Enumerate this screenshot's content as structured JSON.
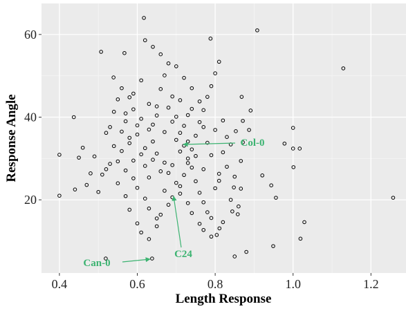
{
  "chart_data": {
    "type": "scatter",
    "x_label": "Length Response",
    "y_label": "Response Angle",
    "xlim": [
      0.354,
      1.29
    ],
    "ylim": [
      2.3,
      67.5
    ],
    "xticks": [
      0.4,
      0.6,
      0.8,
      {
        "value": 1,
        "label": "1.0"
      },
      1.2
    ],
    "yticks": [
      20,
      40,
      60
    ],
    "grid": true,
    "color": "#000000",
    "annotation_color": "#3cb371",
    "annotations": [
      "Col-0",
      "C24",
      "Can-0"
    ],
    "series": [
      {
        "name": "points",
        "color": "#000000",
        "x": [
          0.617,
          0.908,
          1.129,
          1.257,
          0.4,
          0.4,
          0.437,
          0.507,
          0.567,
          0.539,
          0.519,
          0.638,
          0.85,
          0.88,
          0.949,
          1.019,
          1.029,
          1.001,
          1.0,
          0.978,
          1.0,
          1.017,
          0.944,
          0.956,
          0.921,
          0.866,
          0.853,
          0.871,
          0.887,
          0.868,
          0.891,
          0.871,
          0.848,
          0.866,
          0.844,
          0.858,
          0.804,
          0.811,
          0.788,
          0.45,
          0.46,
          0.47,
          0.44,
          0.48,
          0.5,
          0.52,
          0.53,
          0.55,
          0.56,
          0.57,
          0.58,
          0.59,
          0.6,
          0.61,
          0.62,
          0.63,
          0.64,
          0.65,
          0.66,
          0.67,
          0.68,
          0.69,
          0.7,
          0.71,
          0.72,
          0.73,
          0.74,
          0.75,
          0.76,
          0.77,
          0.78,
          0.79,
          0.8,
          0.81,
          0.82,
          0.83,
          0.55,
          0.57,
          0.58,
          0.6,
          0.61,
          0.63,
          0.65,
          0.66,
          0.68,
          0.69,
          0.71,
          0.72,
          0.73,
          0.74,
          0.75,
          0.76,
          0.77,
          0.78,
          0.79,
          0.8,
          0.81,
          0.62,
          0.64,
          0.66,
          0.7,
          0.72,
          0.74,
          0.76,
          0.56,
          0.58,
          0.59,
          0.61,
          0.63,
          0.64,
          0.65,
          0.67,
          0.68,
          0.7,
          0.71,
          0.73,
          0.74,
          0.76,
          0.77,
          0.79,
          0.54,
          0.55,
          0.57,
          0.59,
          0.6,
          0.62,
          0.63,
          0.65,
          0.67,
          0.69,
          0.7,
          0.72,
          0.73,
          0.75,
          0.77,
          0.78,
          0.8,
          0.82,
          0.84,
          0.83,
          0.85,
          0.84,
          0.86,
          0.82,
          0.71,
          0.69,
          0.67,
          0.66,
          0.64,
          0.62,
          0.6,
          0.58,
          0.56,
          0.53,
          0.51,
          0.49,
          0.52,
          0.54,
          0.57,
          0.59,
          0.61,
          0.63,
          0.65,
          0.68,
          0.71,
          0.74,
          0.77,
          0.79,
          0.81,
          0.73
        ],
        "y": [
          64.0,
          61.0,
          51.8,
          20.5,
          30.9,
          21.0,
          40.0,
          55.8,
          55.5,
          49.6,
          5.8,
          5.8,
          6.3,
          7.4,
          8.8,
          10.6,
          14.6,
          27.9,
          37.4,
          33.6,
          32.4,
          32.4,
          23.5,
          20.5,
          25.9,
          29.4,
          36.6,
          39.1,
          36.9,
          44.9,
          41.6,
          33.9,
          23.0,
          22.7,
          17.2,
          16.5,
          11.5,
          13.1,
          59.0,
          30.2,
          32.6,
          23.6,
          22.5,
          26.4,
          21.9,
          27.4,
          37.6,
          44.3,
          36.5,
          40.9,
          33.7,
          29.5,
          35.8,
          31.0,
          28.2,
          25.4,
          38.2,
          42.6,
          46.8,
          50.1,
          53.0,
          45.0,
          40.1,
          36.2,
          33.1,
          30.0,
          27.8,
          24.5,
          21.7,
          19.4,
          17.0,
          15.6,
          22.8,
          26.3,
          31.5,
          35.2,
          24.0,
          20.9,
          17.6,
          14.3,
          12.1,
          10.5,
          13.6,
          16.4,
          18.8,
          20.6,
          23.3,
          26.0,
          28.9,
          32.2,
          35.5,
          38.8,
          41.7,
          44.9,
          47.5,
          50.6,
          53.4,
          58.6,
          57.0,
          55.2,
          52.3,
          49.5,
          47.0,
          43.8,
          47.0,
          44.8,
          41.9,
          39.6,
          37.0,
          34.1,
          31.2,
          29.0,
          26.5,
          24.1,
          21.5,
          19.2,
          16.8,
          14.2,
          12.7,
          11.1,
          33.0,
          29.3,
          27.1,
          25.2,
          22.9,
          20.3,
          17.9,
          15.5,
          36.4,
          38.9,
          34.5,
          37.9,
          40.5,
          30.6,
          27.4,
          33.8,
          36.9,
          39.2,
          33.4,
          28.0,
          25.6,
          20.0,
          18.4,
          14.6,
          31.7,
          28.4,
          22.2,
          26.9,
          29.7,
          32.5,
          38.0,
          35.0,
          31.8,
          28.7,
          26.1,
          30.5,
          36.2,
          41.3,
          39.0,
          45.7,
          48.9,
          43.2,
          40.4,
          42.3,
          44.1,
          42.0,
          37.6,
          30.8,
          24.6,
          34.1
        ]
      }
    ]
  }
}
